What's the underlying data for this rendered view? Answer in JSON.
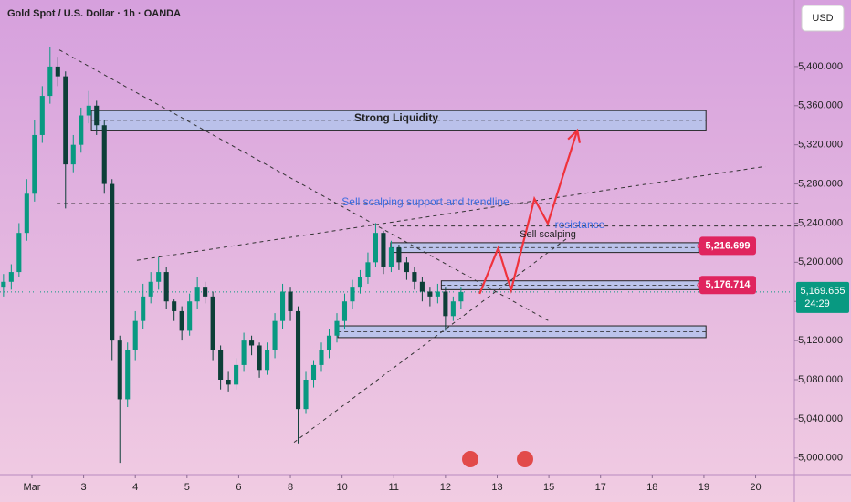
{
  "chart_data": {
    "type": "candlestick",
    "title": "Gold Spot / U.S. Dollar · 1h · OANDA",
    "currency": "USD",
    "xlim": [
      -0.618,
      14.75
    ],
    "xticks": [
      {
        "value": 0,
        "label": "Mar"
      },
      {
        "value": 1,
        "label": "3"
      },
      {
        "value": 2,
        "label": "4"
      },
      {
        "value": 3,
        "label": "5"
      },
      {
        "value": 4,
        "label": "6"
      },
      {
        "value": 5,
        "label": "8"
      },
      {
        "value": 6,
        "label": "10"
      },
      {
        "value": 7,
        "label": "11"
      },
      {
        "value": 8,
        "label": "12"
      },
      {
        "value": 9,
        "label": "13"
      },
      {
        "value": 10,
        "label": "15"
      },
      {
        "value": 11,
        "label": "17"
      },
      {
        "value": 12,
        "label": "18"
      },
      {
        "value": 13,
        "label": "19"
      },
      {
        "value": 14,
        "label": "20"
      }
    ],
    "ylim": [
      4983,
      5468
    ],
    "yticks": [
      {
        "value": 5000,
        "label": "5,000.000"
      },
      {
        "value": 5040,
        "label": "5,040.000"
      },
      {
        "value": 5080,
        "label": "5,080.000"
      },
      {
        "value": 5120,
        "label": "5,120.000"
      },
      {
        "value": 5160,
        "label": "5,160.000"
      },
      {
        "value": 5200,
        "label": "5,200.000"
      },
      {
        "value": 5240,
        "label": "5,240.000"
      },
      {
        "value": 5280,
        "label": "5,280.000"
      },
      {
        "value": 5320,
        "label": "5,320.000"
      },
      {
        "value": 5360,
        "label": "5,360.000"
      },
      {
        "value": 5400,
        "label": "5,400.000"
      }
    ],
    "up_color": "#089981",
    "down_color": "#0d3f38",
    "series": [
      {
        "x": [
          -0.55,
          -0.4,
          -0.25,
          -0.1,
          0.05,
          0.2,
          0.35,
          0.5,
          0.65,
          0.8,
          0.95,
          1.1,
          1.25,
          1.4,
          1.55,
          1.7,
          1.85,
          2.0,
          2.15,
          2.3,
          2.45,
          2.6,
          2.75,
          2.9,
          3.05,
          3.2,
          3.35,
          3.5,
          3.65,
          3.8,
          3.95,
          4.1,
          4.25,
          4.4,
          4.55,
          4.7,
          4.85,
          5.0,
          5.15,
          5.3,
          5.45,
          5.6,
          5.75,
          5.9,
          6.05,
          6.2,
          6.35,
          6.5,
          6.65,
          6.8,
          6.95,
          7.1,
          7.25,
          7.4,
          7.55,
          7.7,
          7.85,
          8.0,
          8.15,
          8.3
        ],
        "open": [
          5175,
          5180,
          5190,
          5230,
          5270,
          5330,
          5370,
          5400,
          5390,
          5300,
          5320,
          5350,
          5360,
          5340,
          5280,
          5120,
          5060,
          5110,
          5140,
          5165,
          5180,
          5190,
          5160,
          5150,
          5130,
          5160,
          5175,
          5165,
          5110,
          5080,
          5075,
          5095,
          5120,
          5115,
          5090,
          5110,
          5140,
          5170,
          5150,
          5050,
          5080,
          5095,
          5110,
          5125,
          5140,
          5160,
          5175,
          5185,
          5200,
          5230,
          5195,
          5215,
          5200,
          5190,
          5180,
          5170,
          5165,
          5170,
          5145,
          5160
        ],
        "high": [
          5188,
          5198,
          5240,
          5285,
          5345,
          5380,
          5420,
          5410,
          5395,
          5330,
          5358,
          5375,
          5365,
          5345,
          5285,
          5125,
          5118,
          5150,
          5178,
          5190,
          5205,
          5195,
          5162,
          5155,
          5168,
          5185,
          5180,
          5170,
          5115,
          5088,
          5102,
          5128,
          5125,
          5118,
          5118,
          5148,
          5178,
          5175,
          5155,
          5088,
          5100,
          5118,
          5132,
          5148,
          5168,
          5182,
          5192,
          5210,
          5240,
          5232,
          5222,
          5218,
          5205,
          5195,
          5185,
          5175,
          5178,
          5175,
          5165,
          5175
        ],
        "low": [
          5165,
          5172,
          5185,
          5222,
          5262,
          5322,
          5362,
          5380,
          5255,
          5292,
          5312,
          5342,
          5330,
          5270,
          5100,
          4995,
          5052,
          5100,
          5132,
          5158,
          5172,
          5152,
          5140,
          5120,
          5125,
          5152,
          5158,
          5100,
          5070,
          5068,
          5070,
          5088,
          5105,
          5082,
          5085,
          5102,
          5132,
          5140,
          5015,
          5045,
          5072,
          5088,
          5102,
          5118,
          5132,
          5152,
          5168,
          5178,
          5195,
          5188,
          5190,
          5192,
          5182,
          5172,
          5160,
          5155,
          5158,
          5130,
          5140,
          5152
        ],
        "close": [
          5180,
          5190,
          5230,
          5270,
          5330,
          5370,
          5400,
          5390,
          5300,
          5320,
          5350,
          5360,
          5340,
          5280,
          5120,
          5060,
          5110,
          5140,
          5165,
          5180,
          5190,
          5160,
          5150,
          5130,
          5160,
          5175,
          5165,
          5110,
          5080,
          5075,
          5095,
          5120,
          5115,
          5090,
          5110,
          5140,
          5170,
          5150,
          5050,
          5080,
          5095,
          5110,
          5125,
          5140,
          5160,
          5175,
          5185,
          5200,
          5230,
          5195,
          5215,
          5200,
          5190,
          5180,
          5170,
          5165,
          5170,
          5145,
          5160,
          5169.655
        ]
      }
    ],
    "zones": [
      {
        "from": 1.15,
        "to": 13.04,
        "low": 5335,
        "high": 5355
      },
      {
        "from": 6.94,
        "to": 12.9,
        "low": 5210,
        "high": 5220
      },
      {
        "from": 7.92,
        "to": 12.9,
        "low": 5172,
        "high": 5181
      },
      {
        "from": 5.92,
        "to": 13.04,
        "low": 5123,
        "high": 5135
      }
    ],
    "trendlines": [
      {
        "x": [
          0.53,
          10.0
        ],
        "y": [
          5417,
          5140
        ]
      },
      {
        "x": [
          5.07,
          10.34
        ],
        "y": [
          5016,
          5224
        ]
      },
      {
        "x": [
          2.03,
          14.19
        ],
        "y": [
          5202,
          5298
        ]
      },
      {
        "x": [
          0.48,
          14.84
        ],
        "y": [
          5260,
          5260
        ]
      },
      {
        "x": [
          6.98,
          14.84
        ],
        "y": [
          5237,
          5237
        ]
      }
    ],
    "arrow": {
      "color": "#f0323c",
      "x": [
        8.66,
        9.02,
        9.27,
        9.72,
        9.98,
        10.55
      ],
      "y": [
        5167.8,
        5214.5,
        5171.6,
        5264.8,
        5239.6,
        5334.7
      ]
    },
    "annotations": {
      "liquidity": "Strong Liquidity",
      "support": "Sell scalping support and trendline",
      "resistance": "resistance",
      "scalping": "Sell scalping"
    },
    "price_labels": [
      {
        "value": 5216.699,
        "label": "5,216.699"
      },
      {
        "value": 5176.714,
        "label": "5,176.714"
      }
    ],
    "last_price": {
      "value": 5169.655,
      "label": "5,169.655",
      "countdown": "24:29"
    }
  }
}
